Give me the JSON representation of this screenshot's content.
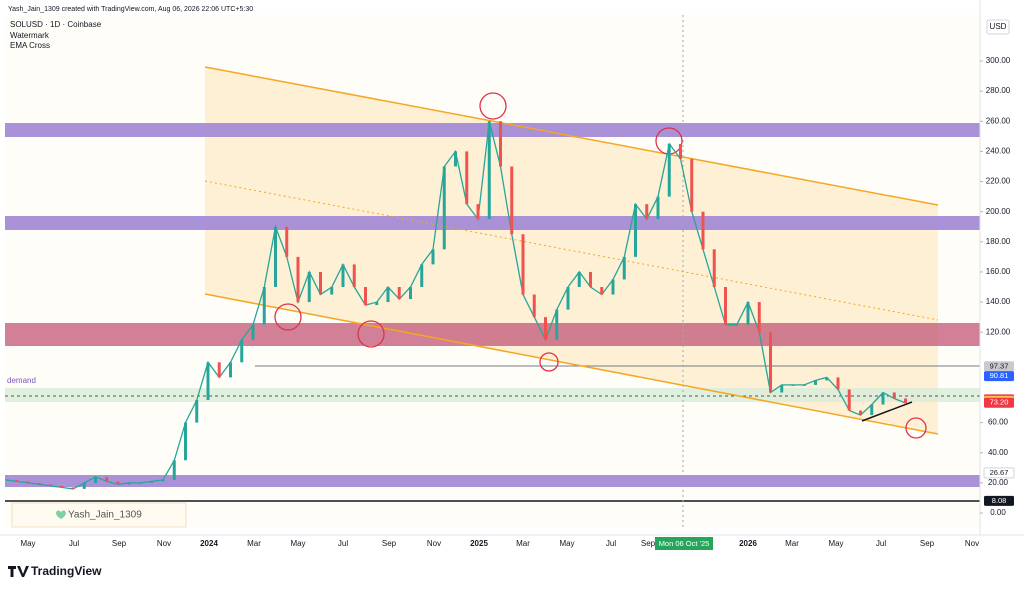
{
  "header": {
    "credit": "Yash_Jain_1309 created with TradingView.com, Aug 06, 2026 22:06 UTC+5:30",
    "symbol": "SOLUSD · 1D · Coinbase",
    "indicators": [
      "Watermark",
      "EMA Cross"
    ]
  },
  "currency": "USD",
  "zone_label": "demand",
  "watermark": "Yash_Jain_1309",
  "brand": "TradingView",
  "price_axis": {
    "ticks": [
      {
        "value": 0,
        "label": "0.00"
      },
      {
        "value": 20,
        "label": "20.00"
      },
      {
        "value": 40,
        "label": "40.00"
      },
      {
        "value": 60,
        "label": "60.00"
      },
      {
        "value": 120,
        "label": "120.00"
      },
      {
        "value": 140,
        "label": "140.00"
      },
      {
        "value": 160,
        "label": "160.00"
      },
      {
        "value": 180,
        "label": "180.00"
      },
      {
        "value": 200,
        "label": "200.00"
      },
      {
        "value": 220,
        "label": "220.00"
      },
      {
        "value": 240,
        "label": "240.00"
      },
      {
        "value": 260,
        "label": "260.00"
      },
      {
        "value": 280,
        "label": "280.00"
      },
      {
        "value": 300,
        "label": "300.00"
      }
    ]
  },
  "price_labels": [
    {
      "value": 97.37,
      "label": "97.37",
      "color": "#c8cad0",
      "text_color": "#131722"
    },
    {
      "value": 90.81,
      "label": "90.81",
      "color": "#2962ff",
      "text_color": "#ffffff"
    },
    {
      "value": 75.41,
      "label": "75.41",
      "color": "#f23645",
      "text_color": "#ffffff"
    },
    {
      "value": 74.4,
      "label": "74.40",
      "color": "#f7c948",
      "text_color": "#131722"
    },
    {
      "value": 73.2,
      "label": "73.20",
      "color": "#f23645",
      "text_color": "#ffffff"
    },
    {
      "value": 26.67,
      "label": "26.67",
      "color": "#ffffff",
      "text_color": "#131722"
    },
    {
      "value": 8.08,
      "label": "8.08",
      "color": "#131722",
      "text_color": "#ffffff"
    }
  ],
  "time_axis": {
    "labels": [
      "May",
      "Jul",
      "Sep",
      "Nov",
      "2024",
      "Mar",
      "May",
      "Jul",
      "Sep",
      "Nov",
      "2025",
      "Mar",
      "May",
      "Jul",
      "Sep",
      "2026",
      "Mar",
      "May",
      "Jul",
      "Sep",
      "Nov"
    ],
    "crosshair": "Mon 06 Oct '25"
  },
  "closes": [
    22,
    21,
    20,
    19,
    18,
    17,
    16,
    20,
    24,
    21,
    19,
    20,
    20,
    21,
    22,
    35,
    60,
    75,
    100,
    90,
    100,
    115,
    125,
    150,
    190,
    170,
    140,
    160,
    145,
    150,
    165,
    150,
    138,
    140,
    150,
    142,
    150,
    165,
    175,
    230,
    240,
    205,
    195,
    260,
    230,
    185,
    145,
    130,
    115,
    135,
    150,
    160,
    150,
    145,
    155,
    170,
    205,
    195,
    210,
    245,
    235,
    200,
    175,
    150,
    125,
    125,
    140,
    120,
    80,
    85,
    85,
    85,
    88,
    90,
    82,
    68,
    65,
    72,
    80,
    76,
    73
  ]
}
